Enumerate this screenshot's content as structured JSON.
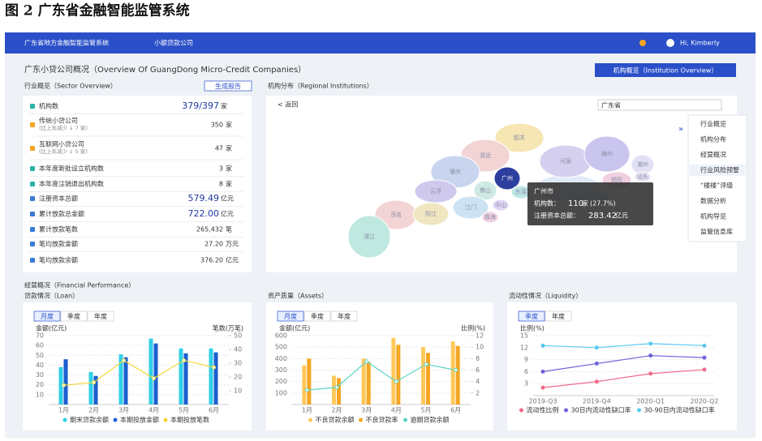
{
  "figure": {
    "caption": "图 2   广东省金融智能监管系统"
  },
  "nav": {
    "title": "广东省地方金融智能监管系统",
    "module": "小额贷款公司",
    "user": "Hi, Kimberly"
  },
  "header": {
    "title": "广东小贷公司概况（Overview Of GuangDong Micro-Credit Companies）",
    "button": "机构概览（Institution Overview）"
  },
  "overview": {
    "title": "行业概览（Sector Overview）",
    "button": "生成报告",
    "rows": [
      {
        "label": "机构数",
        "value": "379/397",
        "unit": "家",
        "emphasis": true
      },
      {
        "label": "传统小贷公司",
        "note": "(比上年减少 ↓ 7 家)",
        "value": "350",
        "unit": "家"
      },
      {
        "label": "互联网小贷公司",
        "note": "(比上年减少 ↓ 5 家)",
        "value": "47",
        "unit": "家"
      },
      {
        "label": "本年度新批设立机构数",
        "value": "3",
        "unit": "家"
      },
      {
        "label": "本年度注销退出机构数",
        "value": "8",
        "unit": "家"
      },
      {
        "label": "注册资本总额",
        "value": "579.49",
        "unit": "亿元",
        "emphasis": true
      },
      {
        "label": "累计放款总金额",
        "value": "722.00",
        "unit": "亿元",
        "emphasis": true
      },
      {
        "label": "累计放款笔数",
        "value": "265,432",
        "unit": "笔"
      },
      {
        "label": "笔均放款金额",
        "value": "27.20",
        "unit": "万元"
      },
      {
        "label": "笔均放款余额",
        "value": "376.20",
        "unit": "亿元"
      }
    ]
  },
  "map": {
    "title": "机构分布（Regional Institutions）",
    "back": "< 返回",
    "select": "广东省",
    "cities": [
      "韶关",
      "清远",
      "河源",
      "梅州",
      "潮州",
      "肇庆",
      "广州",
      "揭阳",
      "汕头",
      "云浮",
      "佛山",
      "东莞",
      "茂名",
      "阳江",
      "江门",
      "中山",
      "珠海",
      "湛江"
    ],
    "tooltip": {
      "city": "广州市",
      "count_label": "机构数：",
      "count": "110",
      "count_unit": "家",
      "count_share": "(27.7%)",
      "capital_label": "注册资本总额：",
      "capital": "283.42",
      "capital_unit": "亿元"
    },
    "menu": [
      "行业概览",
      "机构分布",
      "经营概况",
      "行业风险预警",
      "“楼楼”评级",
      "数据分析",
      "机构导览",
      "监管信息库"
    ],
    "menu_active": 3
  },
  "performance": {
    "title": "经营概况（Financial Performance）"
  },
  "chart_data": [
    {
      "type": "bar",
      "title": "贷款情况（Loan）",
      "tabs": [
        "月度",
        "季度",
        "年度"
      ],
      "active_tab": 0,
      "y_label": "金额(亿元)",
      "y2_label": "笔数(万笔)",
      "categories": [
        "1月",
        "2月",
        "3月",
        "4月",
        "5月",
        "6月"
      ],
      "ylim": [
        0,
        70
      ],
      "yticks": [
        10,
        20,
        30,
        40,
        50,
        60,
        70
      ],
      "y2lim": [
        0,
        50
      ],
      "y2ticks": [
        10,
        20,
        30,
        40,
        50
      ],
      "grid": true,
      "series": [
        {
          "name": "期末贷款余额",
          "color": "#2fd0e8",
          "values": [
            38,
            33,
            51,
            67,
            57,
            57
          ]
        },
        {
          "name": "本期投放金额",
          "color": "#1a5fd0",
          "values": [
            46,
            29,
            48,
            62,
            52,
            53
          ]
        },
        {
          "name": "本期投放笔数",
          "color": "#f5d63a",
          "type": "line",
          "axis": "y2",
          "values": [
            14,
            16,
            32,
            19,
            32,
            27
          ]
        }
      ]
    },
    {
      "type": "bar",
      "title": "资产质量（Assets）",
      "tabs": [
        "月度",
        "季度",
        "年度"
      ],
      "active_tab": 0,
      "y_label": "金额(亿元)",
      "y2_label": "比例(%)",
      "categories": [
        "1月",
        "2月",
        "3月",
        "4月",
        "5月",
        "6月"
      ],
      "ylim": [
        0,
        600
      ],
      "yticks": [
        100,
        200,
        300,
        400,
        500,
        600
      ],
      "y2lim": [
        0,
        12
      ],
      "y2ticks": [
        2,
        4,
        6,
        8,
        10,
        12
      ],
      "grid": true,
      "series": [
        {
          "name": "不良贷款余额",
          "color": "#ffc85a",
          "values": [
            340,
            250,
            400,
            580,
            500,
            550
          ]
        },
        {
          "name": "不良贷款率",
          "color": "#f5a623",
          "values": [
            400,
            230,
            370,
            520,
            450,
            510
          ]
        },
        {
          "name": "逾期贷款余额",
          "color": "#5fd6c8",
          "type": "line",
          "axis": "y2",
          "values": [
            2.5,
            3,
            7.5,
            4,
            7,
            6
          ]
        }
      ]
    },
    {
      "type": "line",
      "title": "流动性情况（Liquidity）",
      "tabs": [
        "季度",
        "年度"
      ],
      "active_tab": 0,
      "y_label": "比例(%)",
      "categories": [
        "2019-Q3",
        "2019-Q4",
        "2020-Q1",
        "2020-Q2"
      ],
      "ylim": [
        0,
        15
      ],
      "yticks": [
        3,
        6,
        9,
        12,
        15
      ],
      "grid": true,
      "series": [
        {
          "name": "流动性比例",
          "color": "#f06b8a",
          "values": [
            2,
            3.5,
            5.5,
            6.5
          ]
        },
        {
          "name": "30日内流动性缺口率",
          "color": "#6c63d9",
          "values": [
            6,
            8,
            10,
            9.5
          ]
        },
        {
          "name": "30-90日内流动性缺口率",
          "color": "#5ac8f0",
          "values": [
            12.5,
            12,
            13,
            12.5
          ]
        }
      ]
    }
  ]
}
